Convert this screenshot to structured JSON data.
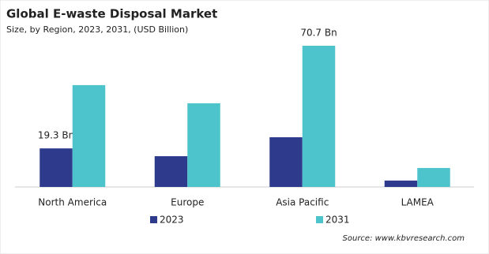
{
  "chart_data": {
    "type": "bar",
    "title": "Global E-waste Disposal Market",
    "subtitle": "Size, by Region, 2023, 2031, (USD Billion)",
    "categories": [
      "North America",
      "Europe",
      "Asia Pacific",
      "LAMEA"
    ],
    "series": [
      {
        "name": "2023",
        "color": "#2e3a8c",
        "values": [
          19.3,
          15.4,
          24.9,
          3.2
        ],
        "value_labels": [
          "19.3 Bn",
          null,
          null,
          null
        ]
      },
      {
        "name": "2031",
        "color": "#4dc3cc",
        "values": [
          51.0,
          41.9,
          70.7,
          9.5
        ],
        "value_labels": [
          null,
          null,
          "70.7 Bn",
          null
        ]
      }
    ],
    "source": "Source: www.kbvresearch.com"
  }
}
